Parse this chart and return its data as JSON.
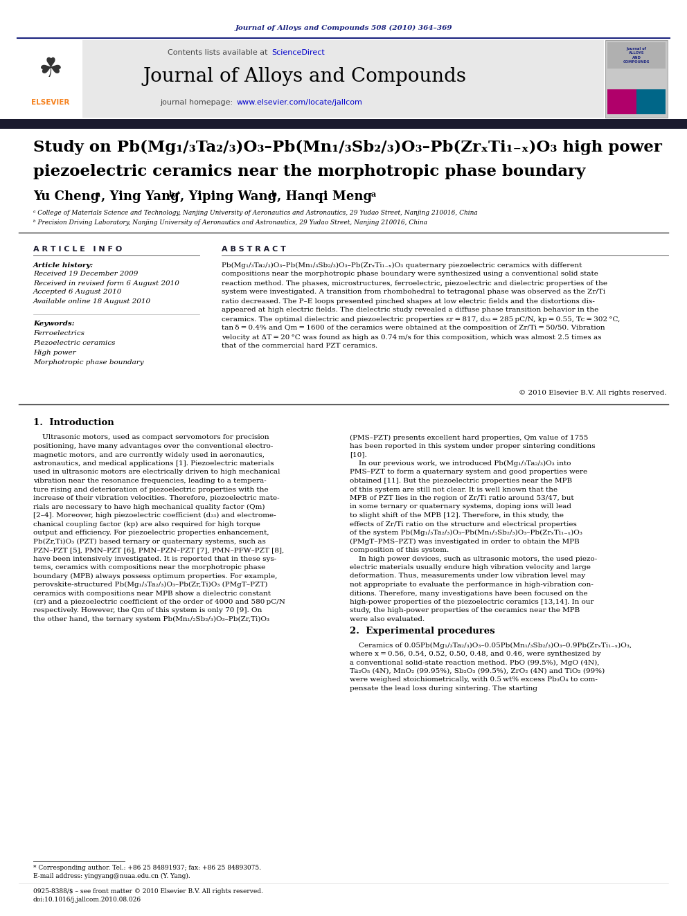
{
  "page_bg": "#ffffff",
  "header_journal_text": "Journal of Alloys and Compounds 508 (2010) 364–369",
  "header_journal_color": "#1a237e",
  "banner_bg": "#e8e8e8",
  "elsevier_orange": "#f5821f",
  "black_bar_color": "#1a1a2e",
  "sciencedirect_color": "#0000cc",
  "banner_homepage_color": "#0000cc",
  "text_color": "#000000",
  "title_color": "#000000",
  "section_header_color": "#1a1a2e",
  "history_lines": [
    "Received 19 December 2009",
    "Received in revised form 6 August 2010",
    "Accepted 6 August 2010",
    "Available online 18 August 2010"
  ],
  "keywords": [
    "Ferroelectrics",
    "Piezoelectric ceramics",
    "High power",
    "Morphotropic phase boundary"
  ],
  "abstract_lines": [
    "Pb(Mg₁/₃Ta₂/₃)O₃–Pb(Mn₁/₃Sb₂/₃)O₃–Pb(ZrₓTi₁₋ₓ)O₃ quaternary piezoelectric ceramics with different",
    "compositions near the morphotropic phase boundary were synthesized using a conventional solid state",
    "reaction method. The phases, microstructures, ferroelectric, piezoelectric and dielectric properties of the",
    "system were investigated. A transition from rhombohedral to tetragonal phase was observed as the Zr/Ti",
    "ratio decreased. The P–E loops presented pinched shapes at low electric fields and the distortions dis-",
    "appeared at high electric fields. The dielectric study revealed a diffuse phase transition behavior in the",
    "ceramics. The optimal dielectric and piezoelectric properties εr = 817, d₃₃ = 285 pC/N, kp = 0.55, Tc = 302 °C,",
    "tan δ = 0.4% and Qm = 1600 of the ceramics were obtained at the composition of Zr/Ti = 50/50. Vibration",
    "velocity at ΔT = 20 °C was found as high as 0.74 m/s for this composition, which was almost 2.5 times as",
    "that of the commercial hard PZT ceramics."
  ],
  "intro_left_lines": [
    "    Ultrasonic motors, used as compact servomotors for precision",
    "positioning, have many advantages over the conventional electro-",
    "magnetic motors, and are currently widely used in aeronautics,",
    "astronautics, and medical applications [1]. Piezoelectric materials",
    "used in ultrasonic motors are electrically driven to high mechanical",
    "vibration near the resonance frequencies, leading to a tempera-",
    "ture rising and deterioration of piezoelectric properties with the",
    "increase of their vibration velocities. Therefore, piezoelectric mate-",
    "rials are necessary to have high mechanical quality factor (Qm)",
    "[2–4]. Moreover, high piezoelectric coefficient (d₃₃) and electrome-",
    "chanical coupling factor (kp) are also required for high torque",
    "output and efficiency. For piezoelectric properties enhancement,",
    "Pb(Zr,Ti)O₃ (PZT) based ternary or quaternary systems, such as",
    "PZN–PZT [5], PMN–PZT [6], PMN–PZN–PZT [7], PMN–PFW–PZT [8],",
    "have been intensively investigated. It is reported that in these sys-",
    "tems, ceramics with compositions near the morphotropic phase",
    "boundary (MPB) always possess optimum properties. For example,",
    "perovskite-structured Pb(Mg₁/₃Ta₂/₃)O₃–Pb(Zr,Ti)O₃ (PMgT–PZT)",
    "ceramics with compositions near MPB show a dielectric constant",
    "(εr) and a piezoelectric coefficient of the order of 4000 and 580 pC/N",
    "respectively. However, the Qm of this system is only 70 [9]. On",
    "the other hand, the ternary system Pb(Mn₁/₂Sb₂/₃)O₃–Pb(Zr,Ti)O₃"
  ],
  "intro_right_lines": [
    "(PMS–PZT) presents excellent hard properties, Qm value of 1755",
    "has been reported in this system under proper sintering conditions",
    "[10].",
    "    In our previous work, we introduced Pb(Mg₁/₃Ta₂/₃)O₃ into",
    "PMS–PZT to form a quaternary system and good properties were",
    "obtained [11]. But the piezoelectric properties near the MPB",
    "of this system are still not clear. It is well known that the",
    "MPB of PZT lies in the region of Zr/Ti ratio around 53/47, but",
    "in some ternary or quaternary systems, doping ions will lead",
    "to slight shift of the MPB [12]. Therefore, in this study, the",
    "effects of Zr/Ti ratio on the structure and electrical properties",
    "of the system Pb(Mg₁/₃Ta₂/₃)O₃–Pb(Mn₁/₃Sb₂/₃)O₃–Pb(ZrₓTi₁₋ₓ)O₃",
    "(PMgT–PMS–PZT) was investigated in order to obtain the MPB",
    "composition of this system.",
    "    In high power devices, such as ultrasonic motors, the used piezo-",
    "electric materials usually endure high vibration velocity and large",
    "deformation. Thus, measurements under low vibration level may",
    "not appropriate to evaluate the performance in high-vibration con-",
    "ditions. Therefore, many investigations have been focused on the",
    "high-power properties of the piezoelectric ceramics [13,14]. In our",
    "study, the high-power properties of the ceramics near the MPB",
    "were also evaluated."
  ],
  "section2_title": "2.  Experimental procedures",
  "exp_lines": [
    "    Ceramics of 0.05Pb(Mg₁/₃Ta₂/₃)O₃–0.05Pb(Mn₁/₃Sb₂/₃)O₃–0.9Pb(ZrₓTi₁₋ₓ)O₃,",
    "where x = 0.56, 0.54, 0.52, 0.50, 0.48, and 0.46, were synthesized by",
    "a conventional solid-state reaction method. PbO (99.5%), MgO (4N),",
    "Ta₂O₅ (4N), MnO₂ (99.95%), Sb₂O₃ (99.5%), ZrO₂ (4N) and TiO₂ (99%)",
    "were weighed stoichiometrically, with 0.5 wt% excess Pb₃O₄ to com-",
    "pensate the lead loss during sintering. The starting"
  ],
  "footer_line1": "0925-8388/$ – see front matter © 2010 Elsevier B.V. All rights reserved.",
  "footer_line2": "doi:10.1016/j.jallcom.2010.08.026",
  "footnote1": "* Corresponding author. Tel.: +86 25 84891937; fax: +86 25 84893075.",
  "footnote2": "E-mail address: yingyang@nuaa.edu.cn (Y. Yang)."
}
